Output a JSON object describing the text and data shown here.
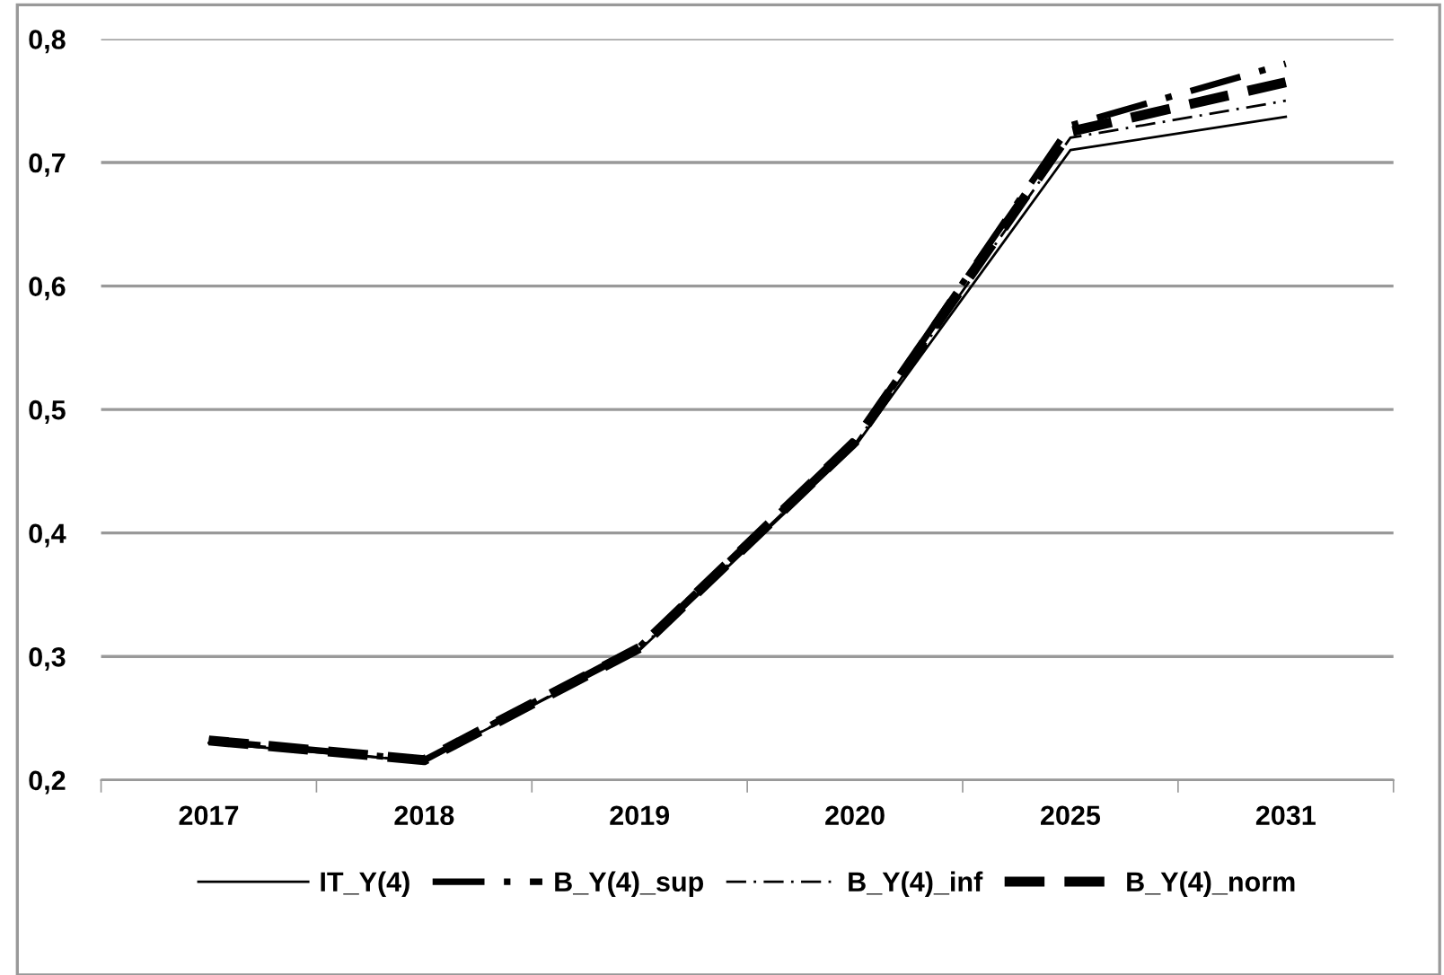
{
  "chart_data": {
    "type": "line",
    "categories": [
      "2017",
      "2018",
      "2019",
      "2020",
      "2025",
      "2031"
    ],
    "ylim": [
      0.2,
      0.8
    ],
    "yticks": [
      {
        "value": 0.2,
        "label": "0,2"
      },
      {
        "value": 0.3,
        "label": "0,3"
      },
      {
        "value": 0.4,
        "label": "0,4"
      },
      {
        "value": 0.5,
        "label": "0,5"
      },
      {
        "value": 0.6,
        "label": "0,6"
      },
      {
        "value": 0.7,
        "label": "0,7"
      },
      {
        "value": 0.8,
        "label": "0,8"
      }
    ],
    "grid": "y",
    "legend": "bottom",
    "marker": "none",
    "series": [
      {
        "name": "IT_Y(4)",
        "color": "#000000",
        "line_style": "solid",
        "values": [
          0.23,
          0.215,
          0.305,
          0.47,
          0.71,
          0.737
        ]
      },
      {
        "name": "B_Y(4)_sup",
        "color": "#000000",
        "line_style": "dashdot",
        "values": [
          0.232,
          0.216,
          0.308,
          0.475,
          0.73,
          0.78
        ]
      },
      {
        "name": "B_Y(4)_inf",
        "color": "#000000",
        "line_style": "dashdotthin",
        "values": [
          0.231,
          0.215,
          0.306,
          0.472,
          0.72,
          0.75
        ]
      },
      {
        "name": "B_Y(4)_norm",
        "color": "#000000",
        "line_style": "dashed",
        "values": [
          0.232,
          0.216,
          0.307,
          0.474,
          0.725,
          0.765
        ]
      }
    ]
  }
}
